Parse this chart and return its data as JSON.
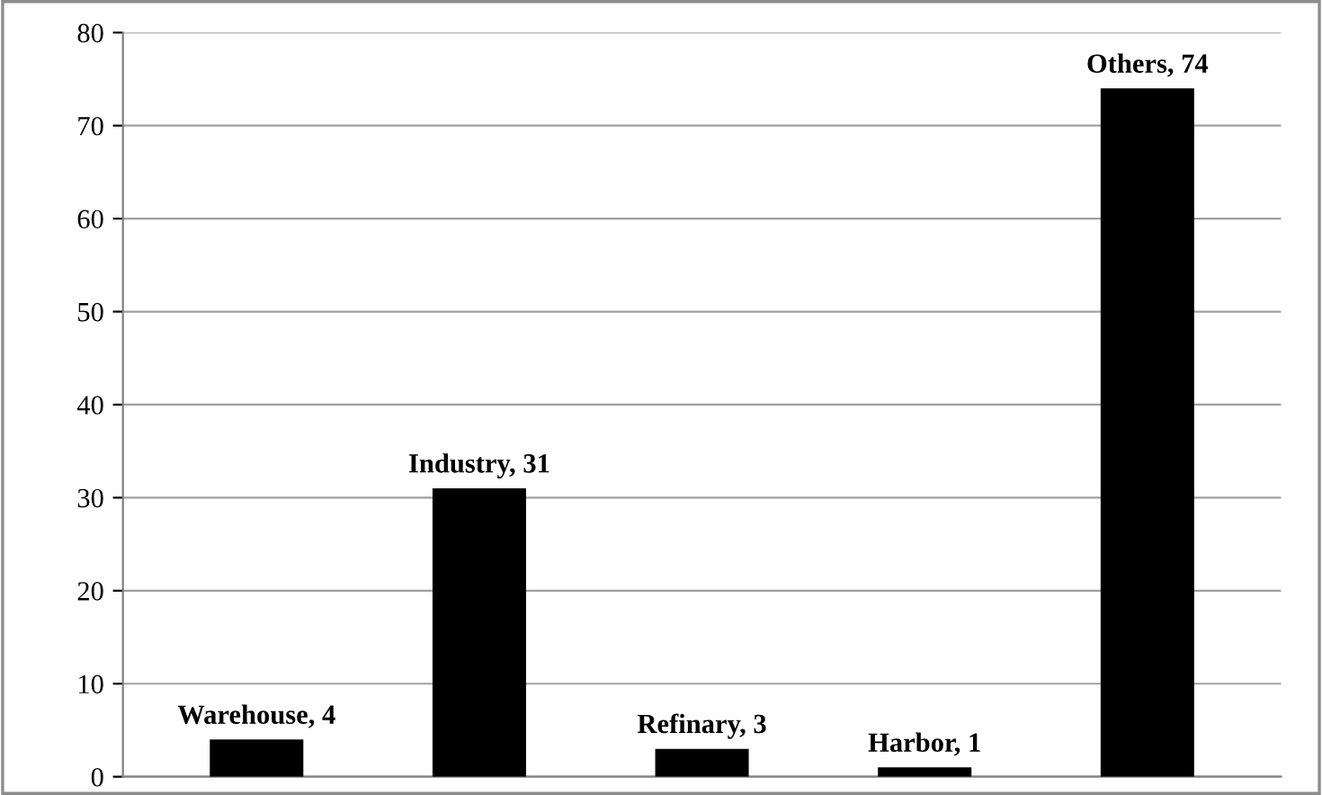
{
  "chart_data": {
    "type": "bar",
    "categories": [
      null,
      null,
      null,
      null,
      null
    ],
    "values": [
      4,
      31,
      3,
      1,
      74
    ],
    "color": "#000000",
    "value_labels": [
      "Warehouse, 4",
      "Industry, 31",
      "Refinary, 3",
      "Harbor, 1",
      "Others, 74"
    ],
    "ylim": [
      0,
      80
    ],
    "yticks": [
      0,
      10,
      20,
      30,
      40,
      50,
      60,
      70,
      80
    ],
    "grid": "y",
    "tick_labels": "y"
  }
}
